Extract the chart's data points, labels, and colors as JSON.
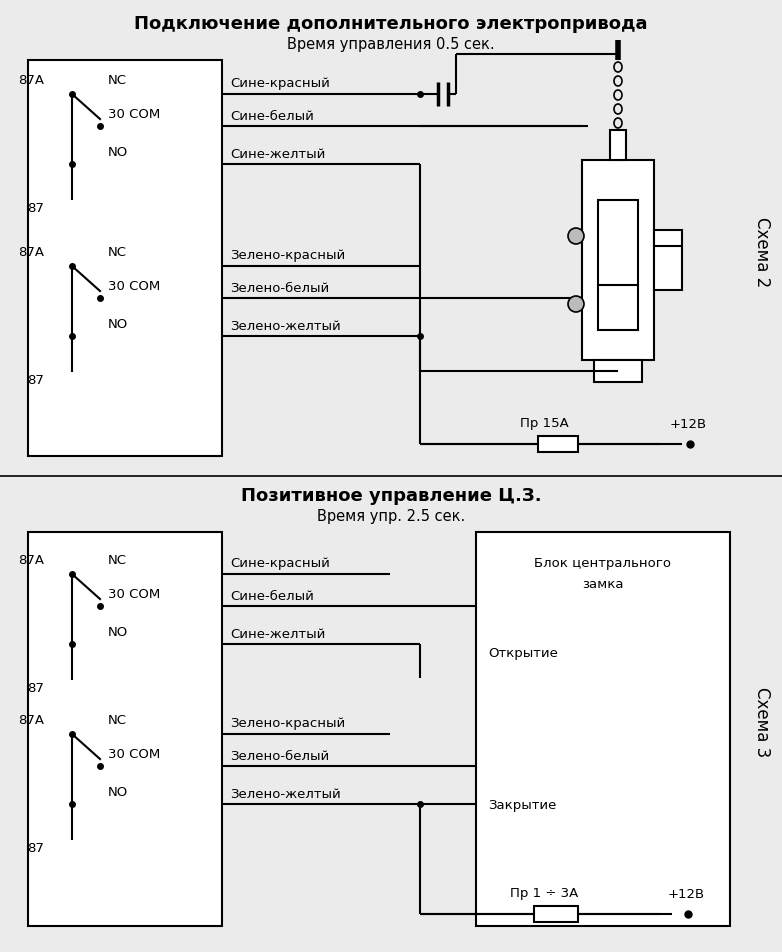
{
  "title1": "Подключение дополнительного электропривода",
  "subtitle1": "Время управления 0.5 сек.",
  "title2": "Позитивное управление Ц.З.",
  "subtitle2": "Время упр. 2.5 сек.",
  "schema_label1": "Схема 2",
  "schema_label2": "Схема 3",
  "bg_color": "#ebebeb",
  "line_color": "#000000",
  "box_color": "#ffffff",
  "text_color": "#000000",
  "fig_w": 7.82,
  "fig_h": 9.52,
  "dpi": 100
}
